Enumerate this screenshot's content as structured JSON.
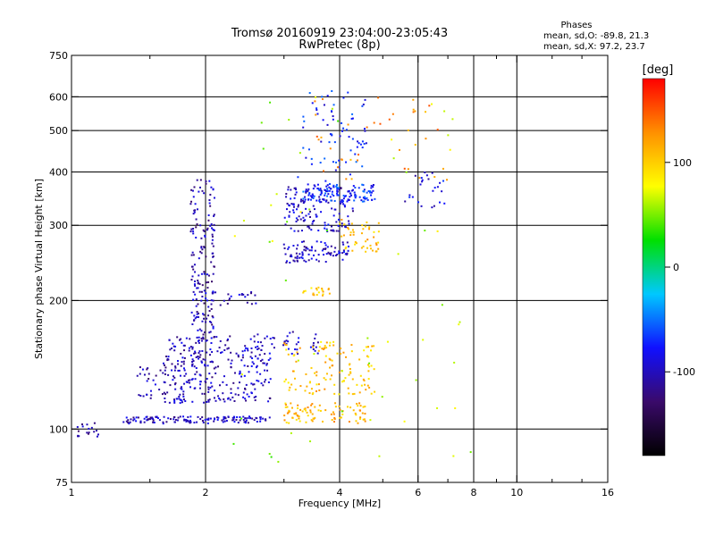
{
  "chart_data": {
    "type": "scatter",
    "title": "Tromsø 20160919 23:04:00-23:05:43",
    "subtitle": "RwPretec (8p)",
    "stats": {
      "header": "Phases",
      "line_o": "mean, sd,O: -89.8, 21.3",
      "line_x": "mean, sd,X: 97.2, 23.7"
    },
    "xlabel": "Frequency [MHz]",
    "ylabel": "Stationary phase Virtual Height [km]",
    "x_scale": "log",
    "y_scale": "log",
    "xlim": [
      1,
      16
    ],
    "ylim": [
      75,
      750
    ],
    "x_ticks": [
      1,
      2,
      4,
      6,
      8,
      10,
      16
    ],
    "x_tick_labels": [
      "1",
      "2",
      "4",
      "6",
      "8",
      "10",
      "16"
    ],
    "x_minor_ticks": [
      1.5,
      3,
      5,
      7,
      9,
      12,
      14
    ],
    "y_ticks": [
      75,
      100,
      200,
      300,
      400,
      500,
      600,
      750
    ],
    "y_tick_labels": [
      "75",
      "100",
      "200",
      "300",
      "400",
      "500",
      "600",
      "750"
    ],
    "x_gridlines": [
      2,
      4,
      6,
      8,
      10
    ],
    "y_gridlines": [
      100,
      200,
      300,
      400,
      500,
      600
    ],
    "grid": true,
    "colorbar": {
      "unit_label": "[deg]",
      "range": [
        -180,
        180
      ],
      "tick_values": [
        -100,
        0,
        100
      ],
      "tick_labels": [
        "-100",
        "0",
        "100"
      ],
      "colors": [
        "#000000",
        "#3a0a6a",
        "#1010ff",
        "#00c8ff",
        "#00e000",
        "#ffff00",
        "#ff9000",
        "#ff0000"
      ]
    },
    "clusters": [
      {
        "name": "o-E",
        "xmin": 1.3,
        "xmax": 2.8,
        "ymin": 103,
        "ymax": 107,
        "phase": -100,
        "n": 140
      },
      {
        "name": "o-start",
        "xmin": 1.03,
        "xmax": 1.15,
        "ymin": 96,
        "ymax": 104,
        "phase": -110,
        "n": 18
      },
      {
        "name": "o-F1a",
        "xmin": 1.4,
        "xmax": 1.65,
        "ymin": 118,
        "ymax": 140,
        "phase": -105,
        "n": 30
      },
      {
        "name": "o-F1b",
        "xmin": 1.6,
        "xmax": 2.8,
        "ymin": 115,
        "ymax": 165,
        "phase": -100,
        "n": 280
      },
      {
        "name": "o-Fspike",
        "xmin": 1.85,
        "xmax": 2.1,
        "ymin": 140,
        "ymax": 390,
        "phase": -105,
        "n": 190
      },
      {
        "name": "o-F1tail",
        "xmin": 2.0,
        "xmax": 2.6,
        "ymin": 195,
        "ymax": 210,
        "phase": -100,
        "n": 25
      },
      {
        "name": "o-F1upper",
        "xmin": 2.6,
        "xmax": 3.6,
        "ymin": 150,
        "ymax": 170,
        "phase": -95,
        "n": 40
      },
      {
        "name": "o-F2band",
        "xmin": 3.0,
        "xmax": 4.2,
        "ymin": 245,
        "ymax": 275,
        "phase": -95,
        "n": 90
      },
      {
        "name": "o-F2mid",
        "xmin": 3.0,
        "xmax": 4.3,
        "ymin": 290,
        "ymax": 370,
        "phase": -95,
        "n": 140
      },
      {
        "name": "o-F2top",
        "xmin": 3.3,
        "xmax": 4.8,
        "ymin": 340,
        "ymax": 375,
        "phase": -70,
        "n": 120
      },
      {
        "name": "o-F2spread",
        "xmin": 3.2,
        "xmax": 4.6,
        "ymin": 380,
        "ymax": 620,
        "phase": -75,
        "n": 70
      },
      {
        "name": "o-F2far",
        "xmin": 5.6,
        "xmax": 6.9,
        "ymin": 330,
        "ymax": 400,
        "phase": -90,
        "n": 25
      },
      {
        "name": "x-E",
        "xmin": 3.0,
        "xmax": 4.6,
        "ymin": 103,
        "ymax": 115,
        "phase": 110,
        "n": 90
      },
      {
        "name": "x-F1",
        "xmin": 3.0,
        "xmax": 4.8,
        "ymin": 120,
        "ymax": 160,
        "phase": 105,
        "n": 120
      },
      {
        "name": "x-F1b",
        "xmin": 3.3,
        "xmax": 3.8,
        "ymin": 205,
        "ymax": 215,
        "phase": 105,
        "n": 20
      },
      {
        "name": "x-F2",
        "xmin": 4.0,
        "xmax": 4.9,
        "ymin": 260,
        "ymax": 310,
        "phase": 110,
        "n": 45
      },
      {
        "name": "x-scatter",
        "xmin": 3.5,
        "xmax": 7.0,
        "ymin": 380,
        "ymax": 600,
        "phase": 130,
        "n": 40
      },
      {
        "name": "x-sparse",
        "xmin": 2.3,
        "xmax": 8.0,
        "ymin": 80,
        "ymax": 600,
        "phase": 60,
        "n": 60
      }
    ]
  }
}
